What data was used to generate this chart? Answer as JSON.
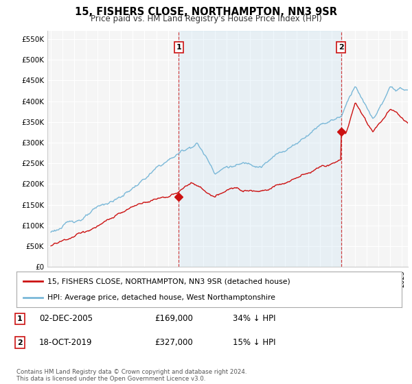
{
  "title": "15, FISHERS CLOSE, NORTHAMPTON, NN3 9SR",
  "subtitle": "Price paid vs. HM Land Registry's House Price Index (HPI)",
  "ylabel_ticks": [
    "£0",
    "£50K",
    "£100K",
    "£150K",
    "£200K",
    "£250K",
    "£300K",
    "£350K",
    "£400K",
    "£450K",
    "£500K",
    "£550K"
  ],
  "ytick_values": [
    0,
    50000,
    100000,
    150000,
    200000,
    250000,
    300000,
    350000,
    400000,
    450000,
    500000,
    550000
  ],
  "ylim": [
    0,
    570000
  ],
  "xlim_start": 1994.7,
  "xlim_end": 2025.5,
  "hpi_color": "#7ab8d8",
  "hpi_fill_color": "#d6eaf8",
  "price_color": "#cc1111",
  "marker1_date": 2005.92,
  "marker1_price": 169000,
  "marker1_label": "1",
  "marker2_date": 2019.79,
  "marker2_price": 327000,
  "marker2_label": "2",
  "legend_label1": "15, FISHERS CLOSE, NORTHAMPTON, NN3 9SR (detached house)",
  "legend_label2": "HPI: Average price, detached house, West Northamptonshire",
  "table_row1": [
    "1",
    "02-DEC-2005",
    "£169,000",
    "34% ↓ HPI"
  ],
  "table_row2": [
    "2",
    "18-OCT-2019",
    "£327,000",
    "15% ↓ HPI"
  ],
  "footnote": "Contains HM Land Registry data © Crown copyright and database right 2024.\nThis data is licensed under the Open Government Licence v3.0.",
  "background_color": "#ffffff",
  "plot_bg_color": "#f5f5f5",
  "grid_color": "#ffffff"
}
